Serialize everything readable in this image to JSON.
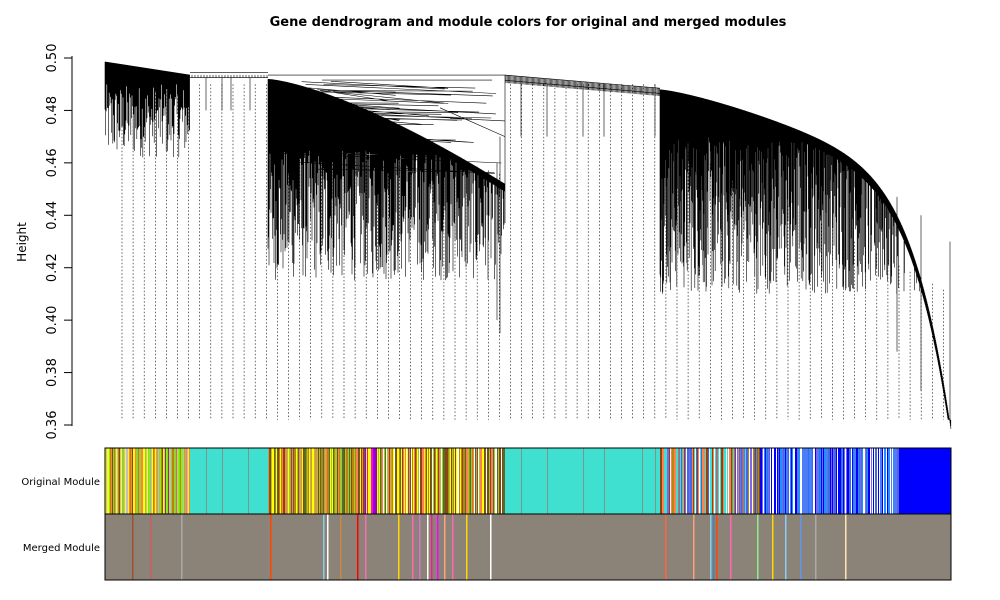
{
  "chart_data": {
    "type": "dendrogram",
    "title": "Gene dendrogram and module colors for original and merged modules",
    "ylabel": "Height",
    "ylim": [
      0.36,
      0.5
    ],
    "yticks": [
      "0.36",
      "0.38",
      "0.40",
      "0.42",
      "0.44",
      "0.46",
      "0.48",
      "0.50"
    ],
    "color_rows": [
      {
        "label": "Original Module",
        "dominant_colors": [
          "#9acd32",
          "#40e0d0",
          "#ffff00",
          "#b8860b",
          "#ff00ff",
          "#0000ff",
          "#7b68ee",
          "#8b4513"
        ]
      },
      {
        "label": "Merged Module",
        "dominant_colors": [
          "#8b8378",
          "#ff0000",
          "#ff69b4",
          "#87ceeb",
          "#ffd700",
          "#2e8b57",
          "#ffffff"
        ]
      }
    ]
  }
}
